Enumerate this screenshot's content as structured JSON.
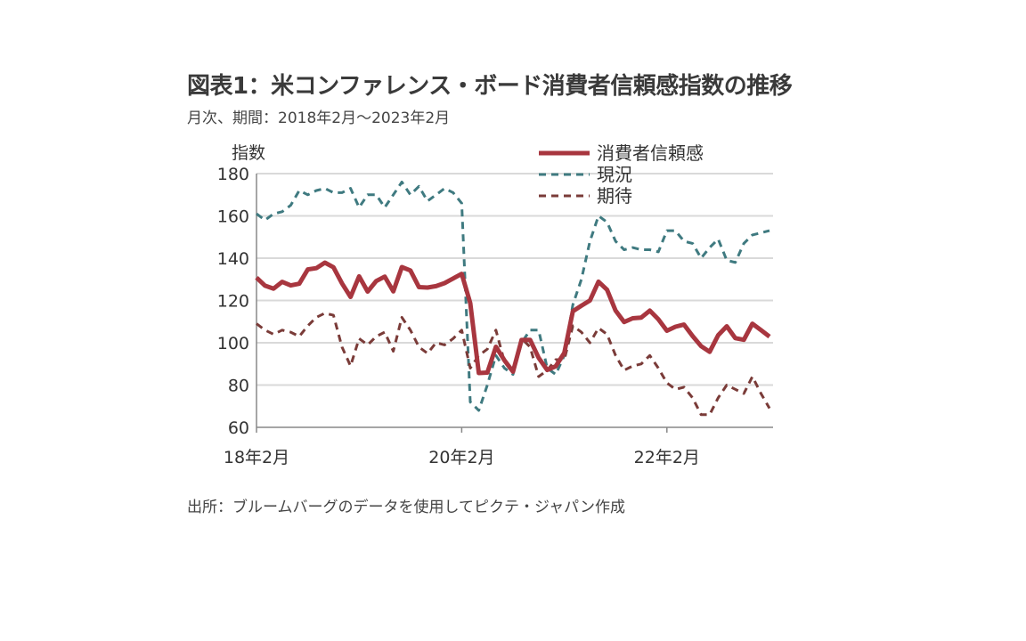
{
  "title": "図表1：米コンファレンス・ボード消費者信頼感指数の推移",
  "subtitle": "月次、期間：2018年2月～2023年2月",
  "source": "出所：ブルームバーグのデータを使用してピクテ・ジャパン作成",
  "chart_data": {
    "type": "line",
    "title": "米コンファレンス・ボード消費者信頼感指数の推移",
    "ylabel": "指数",
    "xlabel": "",
    "ylim": [
      60,
      180
    ],
    "yticks": [
      "60",
      "80",
      "100",
      "120",
      "140",
      "160",
      "180"
    ],
    "xticks": [
      {
        "label": "18年2月",
        "index": 0
      },
      {
        "label": "20年2月",
        "index": 24
      },
      {
        "label": "22年2月",
        "index": 48
      }
    ],
    "x_start": "2018-02",
    "x_end": "2023-02",
    "grid": true,
    "legend_position": "top-right",
    "series": [
      {
        "name": "消費者信頼感",
        "color": "#a8363f",
        "style": "solid",
        "values": [
          130.8,
          127.0,
          125.6,
          128.8,
          127.1,
          127.9,
          134.7,
          135.3,
          137.9,
          135.7,
          128.1,
          121.7,
          131.4,
          124.2,
          129.2,
          131.3,
          124.3,
          135.8,
          134.2,
          126.3,
          126.1,
          126.8,
          128.2,
          130.4,
          132.6,
          118.8,
          85.7,
          85.9,
          98.1,
          91.7,
          86.3,
          101.3,
          101.4,
          92.9,
          87.1,
          88.9,
          95.2,
          114.9,
          117.5,
          120.0,
          128.9,
          125.1,
          115.2,
          109.8,
          111.6,
          111.9,
          115.2,
          111.1,
          105.7,
          107.6,
          108.6,
          103.2,
          98.4,
          95.7,
          103.6,
          107.8,
          102.2,
          101.4,
          109.0,
          106.0,
          102.9
        ]
      },
      {
        "name": "現況",
        "color": "#3f7a80",
        "style": "dashed",
        "values": [
          161,
          158,
          161,
          162,
          165,
          172,
          170,
          172,
          173,
          171,
          171,
          173,
          164,
          170,
          170,
          164,
          170,
          176,
          170,
          174,
          167,
          170,
          173,
          171,
          166,
          72,
          68,
          80,
          94,
          88,
          85,
          100,
          106,
          106,
          88,
          85,
          94,
          118,
          130,
          148,
          160,
          157,
          148,
          144,
          145,
          144,
          144,
          143,
          153,
          153,
          148,
          147,
          140,
          145,
          149,
          139,
          138,
          147,
          151,
          152,
          153
        ]
      },
      {
        "name": "期待",
        "color": "#7a3b38",
        "style": "dashed",
        "values": [
          109,
          106,
          104,
          106,
          105,
          103,
          108,
          112,
          114,
          113,
          98,
          89,
          102,
          99,
          103,
          105,
          96,
          112,
          106,
          98,
          95,
          100,
          99,
          102,
          106,
          88,
          94,
          97,
          106,
          91,
          86,
          102,
          98,
          84,
          87,
          92,
          92,
          108,
          105,
          100,
          107,
          104,
          94,
          87,
          89,
          90,
          94,
          88,
          81,
          78,
          79,
          74,
          66,
          66,
          74,
          80,
          78,
          76,
          84,
          76,
          69
        ]
      }
    ]
  }
}
